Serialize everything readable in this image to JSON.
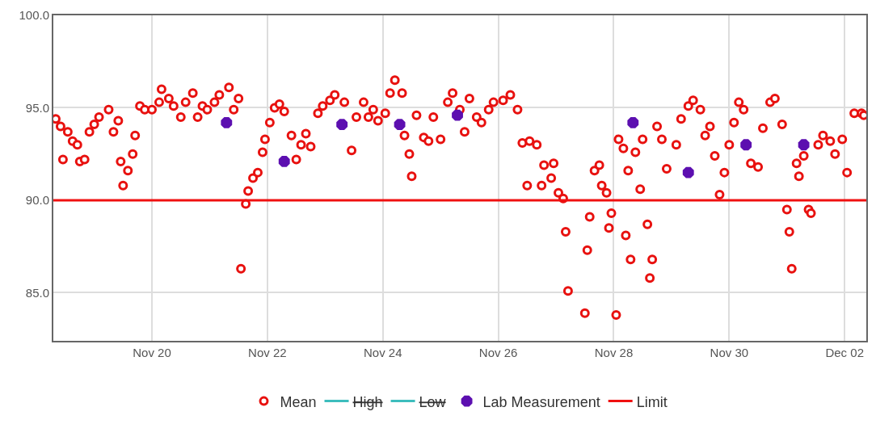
{
  "chart_data": {
    "type": "scatter",
    "xlim": [
      "--11-18T07:00",
      "--12-02T09:00"
    ],
    "xticks": [
      {
        "value": "--11-20",
        "label": "Nov 20"
      },
      {
        "value": "--11-22",
        "label": "Nov 22"
      },
      {
        "value": "--11-24",
        "label": "Nov 24"
      },
      {
        "value": "--11-26",
        "label": "Nov 26"
      },
      {
        "value": "--11-28",
        "label": "Nov 28"
      },
      {
        "value": "--11-30",
        "label": "Nov 30"
      },
      {
        "value": "--12-02",
        "label": "Dec 02"
      }
    ],
    "ylim": [
      82.4,
      100
    ],
    "yticks": [
      {
        "value": 85,
        "label": "85.0"
      },
      {
        "value": 90,
        "label": "90.0"
      },
      {
        "value": 95,
        "label": "95.0"
      },
      {
        "value": 100,
        "label": "100.0"
      }
    ],
    "grid": true,
    "legend": "bottom",
    "series": [
      {
        "name": "Mean",
        "color": "#e8110f",
        "marker": "circle",
        "x": [
          "--11-18T08:00",
          "--11-18T10:00",
          "--11-18T11:00",
          "--11-18T13:00",
          "--11-18T15:00",
          "--11-18T17:00",
          "--11-18T18:00",
          "--11-18T20:00",
          "--11-18T22:00",
          "--11-19T00:00",
          "--11-19T02:00",
          "--11-19T06:00",
          "--11-19T08:00",
          "--11-19T10:00",
          "--11-19T11:00",
          "--11-19T12:00",
          "--11-19T14:00",
          "--11-19T16:00",
          "--11-19T17:00",
          "--11-19T19:00",
          "--11-19T21:00",
          "--11-20T00:00",
          "--11-20T03:00",
          "--11-20T04:00",
          "--11-20T07:00",
          "--11-20T09:00",
          "--11-20T12:00",
          "--11-20T14:00",
          "--11-20T17:00",
          "--11-20T19:00",
          "--11-20T21:00",
          "--11-20T23:00",
          "--11-21T02:00",
          "--11-21T04:00",
          "--11-21T08:00",
          "--11-21T10:00",
          "--11-21T12:00",
          "--11-21T13:00",
          "--11-21T15:00",
          "--11-21T16:00",
          "--11-21T18:00",
          "--11-21T20:00",
          "--11-21T22:00",
          "--11-21T23:00",
          "--11-22T01:00",
          "--11-22T03:00",
          "--11-22T05:00",
          "--11-22T07:00",
          "--11-22T10:00",
          "--11-22T12:00",
          "--11-22T14:00",
          "--11-22T16:00",
          "--11-22T18:00",
          "--11-22T21:00",
          "--11-22T23:00",
          "--11-23T02:00",
          "--11-23T04:00",
          "--11-23T08:00",
          "--11-23T11:00",
          "--11-23T13:00",
          "--11-23T16:00",
          "--11-23T18:00",
          "--11-23T20:00",
          "--11-23T22:00",
          "--11-24T01:00",
          "--11-24T03:00",
          "--11-24T05:00",
          "--11-24T08:00",
          "--11-24T09:00",
          "--11-24T11:00",
          "--11-24T12:00",
          "--11-24T14:00",
          "--11-24T17:00",
          "--11-24T19:00",
          "--11-24T21:00",
          "--11-25T00:00",
          "--11-25T03:00",
          "--11-25T05:00",
          "--11-25T08:00",
          "--11-25T10:00",
          "--11-25T12:00",
          "--11-25T15:00",
          "--11-25T17:00",
          "--11-25T20:00",
          "--11-25T22:00",
          "--11-26T02:00",
          "--11-26T05:00",
          "--11-26T08:00",
          "--11-26T10:00",
          "--11-26T12:00",
          "--11-26T13:00",
          "--11-26T16:00",
          "--11-26T18:00",
          "--11-26T19:00",
          "--11-26T22:00",
          "--11-26T23:00",
          "--11-27T01:00",
          "--11-27T03:00",
          "--11-27T04:00",
          "--11-27T05:00",
          "--11-27T12:00",
          "--11-27T13:00",
          "--11-27T14:00",
          "--11-27T16:00",
          "--11-27T18:00",
          "--11-27T19:00",
          "--11-27T21:00",
          "--11-27T22:00",
          "--11-27T23:00",
          "--11-28T01:00",
          "--11-28T02:00",
          "--11-28T04:00",
          "--11-28T05:00",
          "--11-28T06:00",
          "--11-28T07:00",
          "--11-28T09:00",
          "--11-28T11:00",
          "--11-28T12:00",
          "--11-28T14:00",
          "--11-28T15:00",
          "--11-28T16:00",
          "--11-28T18:00",
          "--11-28T20:00",
          "--11-28T22:00",
          "--11-29T02:00",
          "--11-29T04:00",
          "--11-29T07:00",
          "--11-29T09:00",
          "--11-29T12:00",
          "--11-29T14:00",
          "--11-29T16:00",
          "--11-29T18:00",
          "--11-29T20:00",
          "--11-29T22:00",
          "--11-30T00:00",
          "--11-30T02:00",
          "--11-30T04:00",
          "--11-30T06:00",
          "--11-30T09:00",
          "--11-30T12:00",
          "--11-30T14:00",
          "--11-30T17:00",
          "--11-30T19:00",
          "--11-30T22:00",
          "--12-01T00:00",
          "--12-01T01:00",
          "--12-01T02:00",
          "--12-01T04:00",
          "--12-01T05:00",
          "--12-01T07:00",
          "--12-01T09:00",
          "--12-01T10:00",
          "--12-01T13:00",
          "--12-01T15:00",
          "--12-01T18:00",
          "--12-01T20:00",
          "--12-01T23:00",
          "--12-02T01:00",
          "--12-02T04:00",
          "--12-02T07:00",
          "--12-02T08:00"
        ],
        "values": [
          94.4,
          94.0,
          92.2,
          93.7,
          93.2,
          93.0,
          92.1,
          92.2,
          93.7,
          94.1,
          94.5,
          94.9,
          93.7,
          94.3,
          92.1,
          90.8,
          91.6,
          92.5,
          93.5,
          95.1,
          94.9,
          94.9,
          95.3,
          96.0,
          95.5,
          95.1,
          94.5,
          95.3,
          95.8,
          94.5,
          95.1,
          94.9,
          95.3,
          95.7,
          96.1,
          94.9,
          95.5,
          86.3,
          89.8,
          90.5,
          91.2,
          91.5,
          92.6,
          93.3,
          94.2,
          95.0,
          95.2,
          94.8,
          93.5,
          92.2,
          93.0,
          93.6,
          92.9,
          94.7,
          95.1,
          95.4,
          95.7,
          95.3,
          92.7,
          94.5,
          95.3,
          94.5,
          94.9,
          94.3,
          94.7,
          95.8,
          96.5,
          95.8,
          93.5,
          92.5,
          91.3,
          94.6,
          93.4,
          93.2,
          94.5,
          93.3,
          95.3,
          95.8,
          94.9,
          93.7,
          95.5,
          94.5,
          94.2,
          94.9,
          95.3,
          95.4,
          95.7,
          94.9,
          93.1,
          90.8,
          93.2,
          93.0,
          90.8,
          91.9,
          91.2,
          92.0,
          90.4,
          90.1,
          88.3,
          85.1,
          83.9,
          87.3,
          89.1,
          91.6,
          91.9,
          90.8,
          90.4,
          88.5,
          89.3,
          83.8,
          93.3,
          92.8,
          88.1,
          91.6,
          86.8,
          92.6,
          90.6,
          93.3,
          88.7,
          85.8,
          86.8,
          94.0,
          93.3,
          91.7,
          93.0,
          94.4,
          95.1,
          95.4,
          94.9,
          93.5,
          94.0,
          92.4,
          90.3,
          91.5,
          93.0,
          94.2,
          95.3,
          94.9,
          92.0,
          91.8,
          93.9,
          95.3,
          95.5,
          94.1,
          89.5,
          88.3,
          86.3,
          92.0,
          91.3,
          92.4,
          89.5,
          89.3,
          93.0,
          93.5,
          93.2,
          92.5,
          93.3,
          91.5,
          94.7,
          94.7,
          94.6
        ]
      },
      {
        "name": "High",
        "color": "#3dbdbd"
      },
      {
        "name": "Low",
        "color": "#3dbdbd"
      },
      {
        "name": "Lab Measurement",
        "color": "#5c0fb0",
        "marker": "star",
        "x": [
          "--11-21T07:00",
          "--11-22T07:00",
          "--11-23T07:00",
          "--11-24T07:00",
          "--11-25T07:00",
          "--11-28T08:00",
          "--11-29T07:00",
          "--11-30T07:00",
          "--12-01T07:00"
        ],
        "values": [
          94.2,
          92.1,
          94.1,
          94.1,
          94.6,
          94.2,
          91.5,
          93.0,
          93.0
        ]
      }
    ],
    "ref_lines": [
      {
        "axis": "y",
        "value": 90,
        "label": "Limit",
        "color": "#f01010"
      }
    ]
  }
}
